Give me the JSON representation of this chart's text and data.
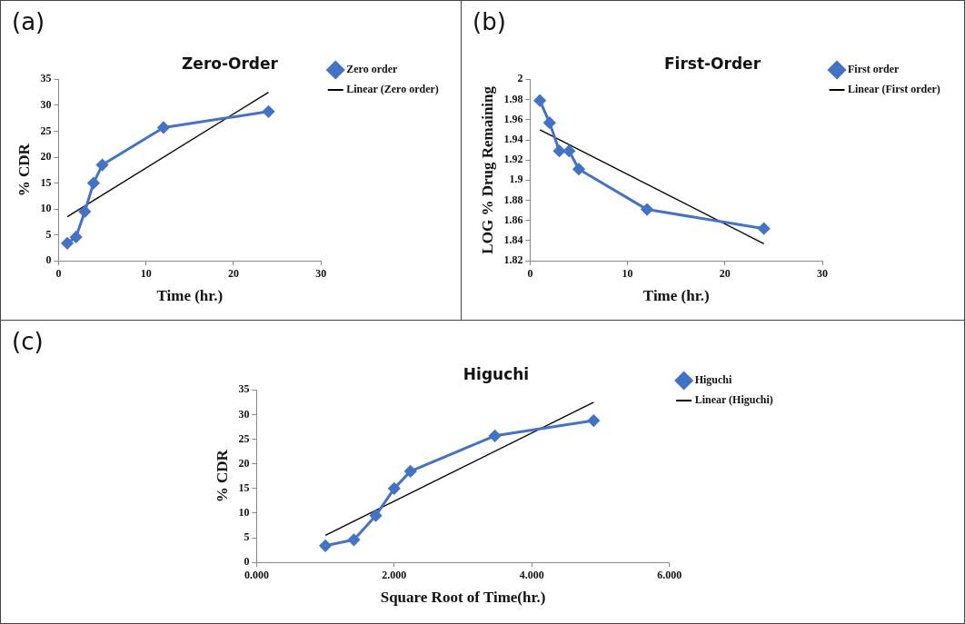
{
  "chart_data": [
    {
      "type": "line",
      "title": "Zero-Order",
      "xlabel": "Time (hr.)",
      "ylabel": "% CDR",
      "annotations": [
        "(a)"
      ],
      "x": [
        1,
        2,
        3,
        4,
        5,
        12,
        24
      ],
      "xlim": [
        0,
        30
      ],
      "xticks": [
        0,
        10,
        20,
        30
      ],
      "ylim": [
        0,
        35
      ],
      "yticks": [
        0,
        5,
        10,
        15,
        20,
        25,
        30,
        35
      ],
      "grid": false,
      "legend": "right",
      "marker": "diamond",
      "series": [
        {
          "name": "Zero order",
          "color": "#4472c4",
          "values": [
            3.4,
            4.6,
            9.5,
            15,
            18.5,
            25.7,
            28.8
          ]
        },
        {
          "name": "Linear (Zero order)",
          "color": "#000000",
          "marker": "none",
          "x": [
            1,
            24
          ],
          "values": [
            8.5,
            32.5
          ]
        }
      ]
    },
    {
      "type": "line",
      "title": "First-Order",
      "xlabel": "Time (hr.)",
      "ylabel": "LOG % Drug Remaining",
      "annotations": [
        "(b)"
      ],
      "x": [
        1,
        2,
        3,
        4,
        5,
        12,
        24
      ],
      "xlim": [
        0,
        30
      ],
      "xticks": [
        0,
        10,
        20,
        30
      ],
      "ylim": [
        1.82,
        2
      ],
      "yticks": [
        1.82,
        1.84,
        1.86,
        1.88,
        1.9,
        1.92,
        1.94,
        1.96,
        1.98,
        2
      ],
      "grid": false,
      "legend": "right",
      "marker": "diamond",
      "series": [
        {
          "name": "First order",
          "color": "#4472c4",
          "values": [
            1.979,
            1.957,
            1.929,
            1.929,
            1.911,
            1.871,
            1.852
          ]
        },
        {
          "name": "Linear (First order)",
          "color": "#000000",
          "marker": "none",
          "x": [
            1,
            24
          ],
          "values": [
            1.95,
            1.837
          ]
        }
      ]
    },
    {
      "type": "line",
      "title": "Higuchi",
      "xlabel": "Square Root of Time(hr.)",
      "ylabel": "% CDR",
      "annotations": [
        "(c)"
      ],
      "x": [
        1,
        1.414,
        1.732,
        2,
        2.236,
        3.464,
        4.899
      ],
      "xlim": [
        0,
        6
      ],
      "xticks": [
        {
          "value": 0,
          "label": "0.000"
        },
        {
          "value": 2,
          "label": "2.000"
        },
        {
          "value": 4,
          "label": "4.000"
        },
        {
          "value": 6,
          "label": "6.000"
        }
      ],
      "ylim": [
        0,
        35
      ],
      "yticks": [
        0,
        5,
        10,
        15,
        20,
        25,
        30,
        35
      ],
      "grid": false,
      "legend": "right",
      "marker": "diamond",
      "series": [
        {
          "name": "Higuchi",
          "color": "#4472c4",
          "values": [
            3.4,
            4.6,
            9.5,
            15,
            18.5,
            25.7,
            28.8
          ]
        },
        {
          "name": "Linear (Higuchi)",
          "color": "#000000",
          "marker": "none",
          "x": [
            1,
            4.899
          ],
          "values": [
            5.5,
            32.5
          ]
        }
      ]
    }
  ]
}
